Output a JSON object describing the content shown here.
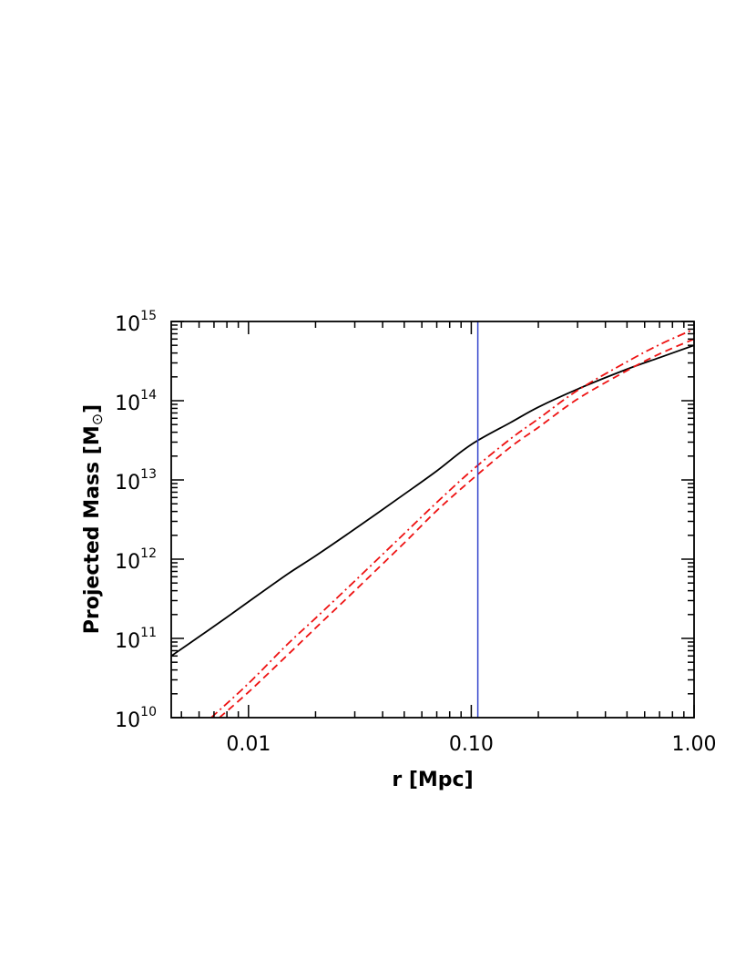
{
  "chart_data": {
    "type": "line",
    "title": "",
    "xlabel": "r [Mpc]",
    "ylabel_main": "Projected Mass [M",
    "ylabel_symbol": "⊙",
    "ylabel_close": "]",
    "xscale": "log",
    "yscale": "log",
    "xlim": [
      0.0045,
      1.0
    ],
    "ylim": [
      10000000000.0,
      1000000000000000.0
    ],
    "grid": false,
    "legend": "none",
    "x_ticks": [
      {
        "value": 0.01,
        "label": "0.01"
      },
      {
        "value": 0.1,
        "label": "0.10"
      },
      {
        "value": 1.0,
        "label": "1.00"
      }
    ],
    "y_ticks": [
      {
        "value": 10000000000.0,
        "base": "10",
        "exp": "10"
      },
      {
        "value": 100000000000.0,
        "base": "10",
        "exp": "11"
      },
      {
        "value": 1000000000000.0,
        "base": "10",
        "exp": "12"
      },
      {
        "value": 10000000000000.0,
        "base": "10",
        "exp": "13"
      },
      {
        "value": 100000000000000.0,
        "base": "10",
        "exp": "14"
      },
      {
        "value": 1000000000000000.0,
        "base": "10",
        "exp": "15"
      }
    ],
    "vertical_line": {
      "x": 0.107,
      "color": "#3344cc"
    },
    "series": [
      {
        "style": "solid",
        "color": "#000000",
        "x": [
          0.0045,
          0.006,
          0.008,
          0.01,
          0.015,
          0.02,
          0.03,
          0.05,
          0.07,
          0.1,
          0.15,
          0.2,
          0.3,
          0.5,
          0.7,
          1.0
        ],
        "y": [
          60000000000.0,
          105000000000.0,
          185000000000.0,
          290000000000.0,
          650000000000.0,
          1100000000000.0,
          2400000000000.0,
          6600000000000.0,
          13000000000000.0,
          28000000000000.0,
          53000000000000.0,
          83000000000000.0,
          140000000000000.0,
          250000000000000.0,
          350000000000000.0,
          500000000000000.0
        ]
      },
      {
        "style": "dashed",
        "color": "#ee1111",
        "x": [
          0.0074,
          0.01,
          0.015,
          0.02,
          0.03,
          0.05,
          0.07,
          0.1,
          0.15,
          0.2,
          0.3,
          0.5,
          0.7,
          1.0
        ],
        "y": [
          10000000000.0,
          21000000000.0,
          62000000000.0,
          135000000000.0,
          400000000000.0,
          1600000000000.0,
          4100000000000.0,
          10000000000000.0,
          26000000000000.0,
          46000000000000.0,
          105000000000000.0,
          240000000000000.0,
          390000000000000.0,
          600000000000000.0
        ]
      },
      {
        "style": "dashdot",
        "color": "#ee1111",
        "x": [
          0.0068,
          0.01,
          0.015,
          0.02,
          0.03,
          0.05,
          0.07,
          0.1,
          0.15,
          0.2,
          0.3,
          0.5,
          0.7,
          1.0
        ],
        "y": [
          10000000000.0,
          27000000000.0,
          85000000000.0,
          180000000000.0,
          530000000000.0,
          2100000000000.0,
          5200000000000.0,
          13000000000000.0,
          33000000000000.0,
          59000000000000.0,
          135000000000000.0,
          310000000000000.0,
          510000000000000.0,
          800000000000000.0
        ]
      }
    ]
  }
}
